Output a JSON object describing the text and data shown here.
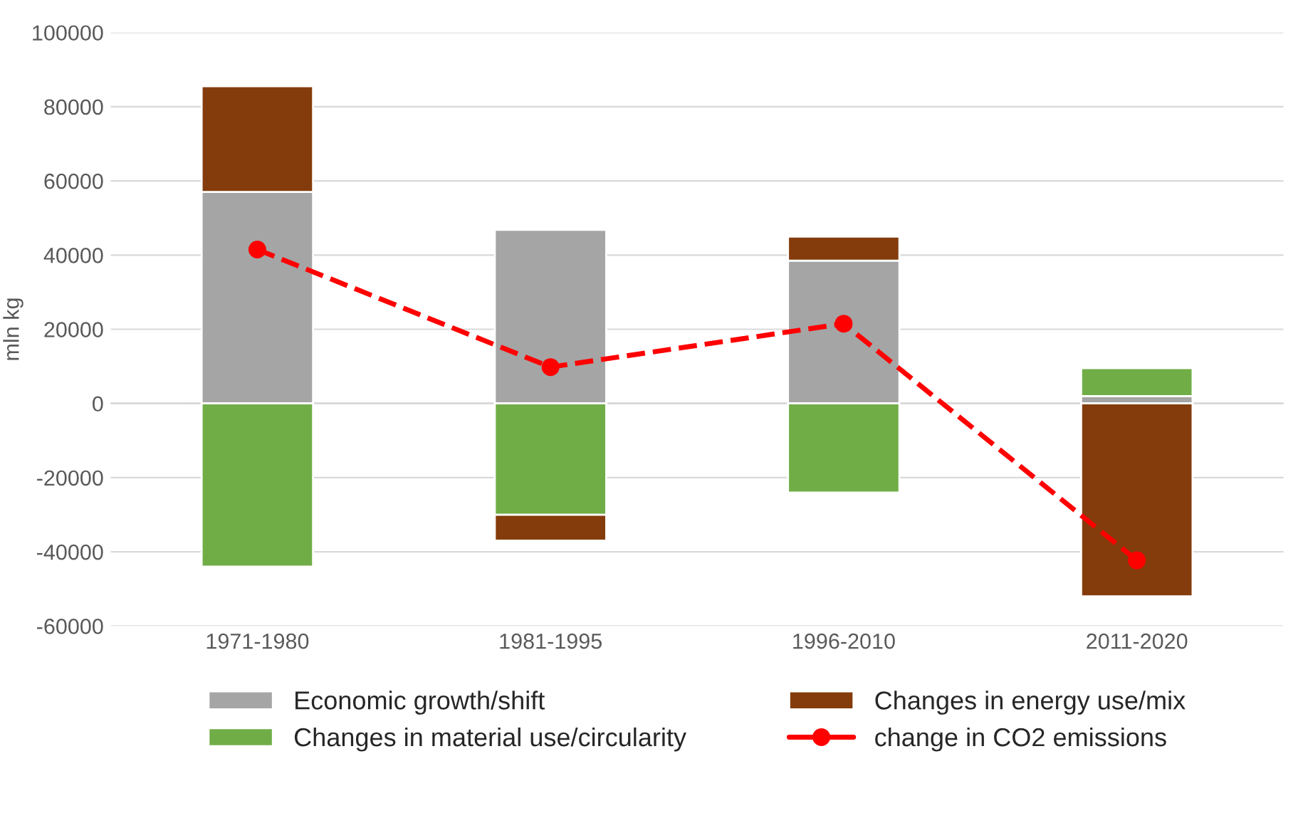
{
  "chart_data": {
    "type": "bar",
    "stacked": true,
    "ylabel": "mln kg",
    "categories": [
      "1971-1980",
      "1981-1995",
      "1996-2010",
      "2011-2020"
    ],
    "series": [
      {
        "name": "Economic growth/shift",
        "color": "#a5a5a5",
        "values": [
          57000,
          46800,
          38500,
          2000
        ]
      },
      {
        "name": "Changes in material use/circularity",
        "color": "#70ad47",
        "values": [
          -44000,
          -30000,
          -24000,
          7500
        ]
      },
      {
        "name": "Changes in energy use/mix",
        "color": "#843c0c",
        "values": [
          28500,
          -7000,
          6500,
          -52000
        ]
      },
      {
        "name": "change in CO2 emissions",
        "type": "line",
        "color": "#ff0000",
        "marker": "circle",
        "line_style": "dashed",
        "values": [
          41500,
          9800,
          21500,
          -42300
        ]
      }
    ],
    "ylim": [
      -60000,
      100000
    ],
    "yticks": [
      -60000,
      -40000,
      -20000,
      0,
      20000,
      40000,
      60000,
      80000,
      100000
    ],
    "grid": "y",
    "legend": "bottom"
  }
}
